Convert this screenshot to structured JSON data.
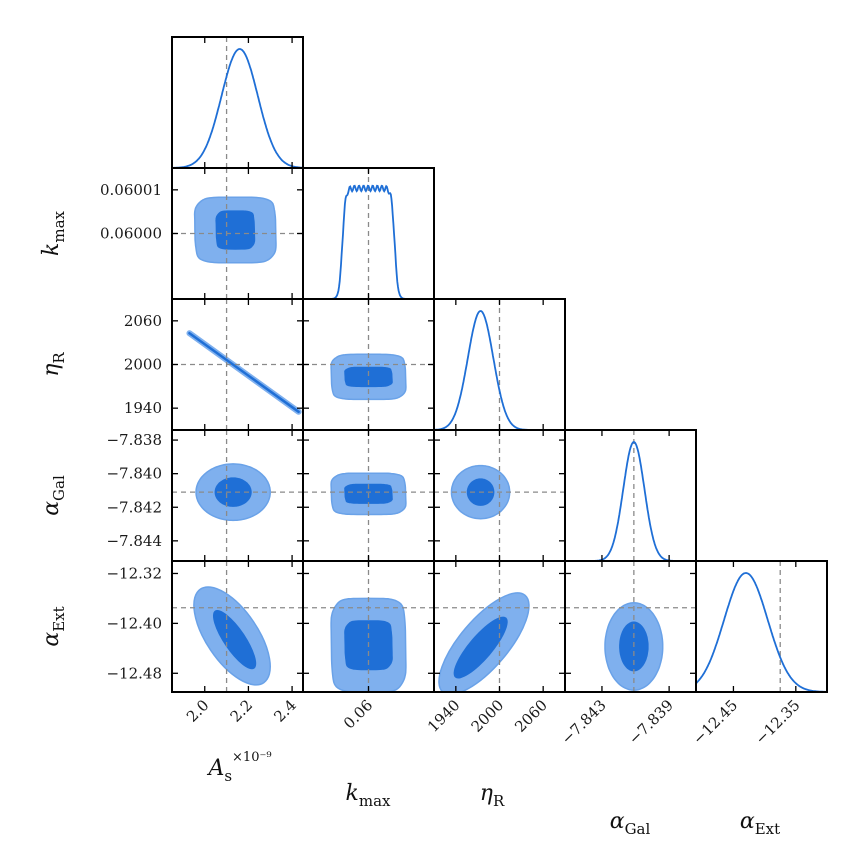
{
  "chart_data": {
    "type": "corner",
    "colors": {
      "line": "#1f6fd6",
      "inner_fill": "#1f6fd6",
      "outer_fill": "#7fb0ee",
      "outer_edge": "#6aa2e8",
      "truth_line": "#8a8a8a",
      "frame": "#000000"
    },
    "parameters": [
      {
        "key": "As",
        "label_main": "A",
        "label_sub": "s",
        "label_sup": "×10⁻⁹",
        "truth": 2.1,
        "range": [
          1.85,
          2.45
        ],
        "ticks": [
          {
            "v": 2.0,
            "t": "2.0"
          },
          {
            "v": 2.2,
            "t": "2.2"
          },
          {
            "v": 2.4,
            "t": "2.4"
          }
        ]
      },
      {
        "key": "kmax",
        "label_main": "k",
        "label_sub": "max",
        "label_sup": "",
        "truth": 0.06,
        "range": [
          0.059985,
          0.060015
        ],
        "ticks": [
          {
            "v": 0.06,
            "t": "0.06"
          }
        ]
      },
      {
        "key": "etaR",
        "label_main": "η",
        "label_sub": "R",
        "label_sup": "",
        "truth": 2000,
        "range": [
          1910,
          2090
        ],
        "ticks": [
          {
            "v": 1940,
            "t": "1940"
          },
          {
            "v": 2000,
            "t": "2000"
          },
          {
            "v": 2060,
            "t": "2060"
          }
        ]
      },
      {
        "key": "aGal",
        "label_main": "α",
        "label_sub": "Gal",
        "label_sup": "",
        "truth": -7.8411,
        "range": [
          -7.8452,
          -7.8374
        ],
        "ticks": [
          {
            "v": -7.843,
            "t": "−7.843"
          },
          {
            "v": -7.839,
            "t": "−7.839"
          }
        ]
      },
      {
        "key": "aExt",
        "label_main": "α",
        "label_sub": "Ext",
        "label_sup": "",
        "truth": -12.375,
        "range": [
          -12.51,
          -12.3
        ],
        "ticks": [
          {
            "v": -12.45,
            "t": "−12.45"
          },
          {
            "v": -12.35,
            "t": "−12.35"
          }
        ]
      }
    ],
    "row_ticks": [
      null,
      [
        {
          "v": 0.06001,
          "t": "0.06001"
        },
        {
          "v": 0.06,
          "t": "0.06000"
        }
      ],
      [
        {
          "v": 2060,
          "t": "2060"
        },
        {
          "v": 2000,
          "t": "2000"
        },
        {
          "v": 1940,
          "t": "1940"
        }
      ],
      [
        {
          "v": -7.838,
          "t": "−7.838"
        },
        {
          "v": -7.84,
          "t": "−7.840"
        },
        {
          "v": -7.842,
          "t": "−7.842"
        },
        {
          "v": -7.844,
          "t": "−7.844"
        }
      ],
      [
        {
          "v": -12.32,
          "t": "−12.32"
        },
        {
          "v": -12.4,
          "t": "−12.40"
        },
        {
          "v": -12.48,
          "t": "−12.48"
        }
      ]
    ],
    "marginals": [
      {
        "type": "gaussian",
        "mean": 2.16,
        "sd": 0.083
      },
      {
        "type": "flat",
        "lo": 0.059994,
        "hi": 0.060006
      },
      {
        "type": "gaussian",
        "mean": 1974,
        "sd": 17.5
      },
      {
        "type": "gaussian",
        "mean": -7.8411,
        "sd": 0.00063
      },
      {
        "type": "gaussian",
        "mean": -12.43,
        "sd": 0.035
      }
    ],
    "contours": [
      {
        "row": 1,
        "col": 0,
        "shape": "box",
        "cx": 2.14,
        "cy": 0.0600008,
        "sx": 0.09,
        "sy": 4.5e-06,
        "outer": [
          0.185,
          7.5e-06
        ]
      },
      {
        "row": 2,
        "col": 0,
        "shape": "line",
        "x0": 1.93,
        "y0": 2043,
        "x1": 2.43,
        "y1": 1935,
        "width": 0.01
      },
      {
        "row": 2,
        "col": 1,
        "shape": "box",
        "cx": 0.06,
        "cy": 1983,
        "sx": 5.5e-06,
        "sy": 14,
        "outer": [
          8.5e-06,
          31
        ]
      },
      {
        "row": 3,
        "col": 0,
        "shape": "ellipse",
        "cx": 2.13,
        "cy": -7.8411,
        "sx": 0.085,
        "sy": 0.00088,
        "outer": [
          0.17,
          0.00168
        ]
      },
      {
        "row": 3,
        "col": 1,
        "shape": "box",
        "cx": 0.06,
        "cy": -7.8412,
        "sx": 5.5e-06,
        "sy": 0.0006,
        "outer": [
          8.5e-06,
          0.00123
        ]
      },
      {
        "row": 3,
        "col": 2,
        "shape": "ellipse",
        "cx": 1974,
        "cy": -7.8411,
        "sx": 19,
        "sy": 0.00082,
        "outer": [
          40,
          0.00158
        ]
      },
      {
        "row": 4,
        "col": 0,
        "shape": "diag",
        "x0": 1.98,
        "y0": -12.345,
        "x1": 2.27,
        "y1": -12.495,
        "w1": 0.035,
        "w2": 0.075
      },
      {
        "row": 4,
        "col": 1,
        "shape": "box",
        "cx": 0.06,
        "cy": -12.435,
        "sx": 5.5e-06,
        "sy": 0.04,
        "outer": [
          8.5e-06,
          0.075
        ]
      },
      {
        "row": 4,
        "col": 2,
        "shape": "diag",
        "x0": 2035,
        "y0": -12.355,
        "x1": 1922,
        "y1": -12.51,
        "w1": 0.038,
        "w2": 0.07
      },
      {
        "row": 4,
        "col": 3,
        "shape": "ellipse",
        "cx": -7.8411,
        "cy": -12.437,
        "sx": 0.00088,
        "sy": 0.04,
        "outer": [
          0.00172,
          0.07
        ]
      }
    ]
  }
}
